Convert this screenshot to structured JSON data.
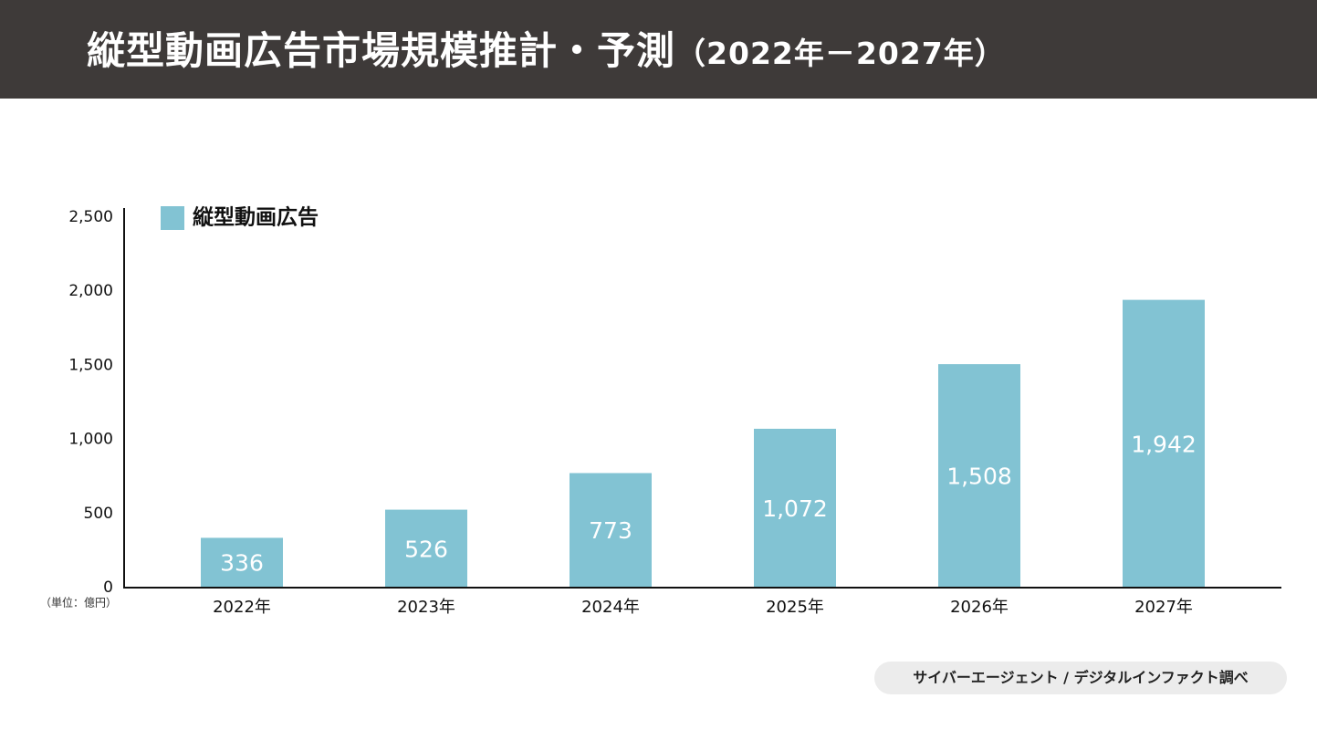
{
  "header": {
    "title_main": "縦型動画広告市場規模推計・予測",
    "title_sub": "（2022年－2027年）",
    "background": "#3e3a39",
    "text_color": "#ffffff"
  },
  "chart_data": {
    "type": "bar",
    "categories": [
      "2022年",
      "2023年",
      "2024年",
      "2025年",
      "2026年",
      "2027年"
    ],
    "series": [
      {
        "name": "縦型動画広告",
        "values": [
          336,
          526,
          773,
          1072,
          1508,
          1942
        ],
        "value_labels": [
          "336",
          "526",
          "773",
          "1,072",
          "1,508",
          "1,942"
        ],
        "color": "#82c3d3"
      }
    ],
    "yticks": [
      0,
      500,
      1000,
      1500,
      2000,
      2500
    ],
    "ytick_labels": [
      "0",
      "500",
      "1,000",
      "1,500",
      "2,000",
      "2,500"
    ],
    "ylim": [
      0,
      2500
    ],
    "unit_note": "（単位：億円）",
    "legend_position": "top-left",
    "grid": false
  },
  "source": {
    "text": "サイバーエージェント / デジタルインファクト調べ",
    "background": "#ececec"
  }
}
